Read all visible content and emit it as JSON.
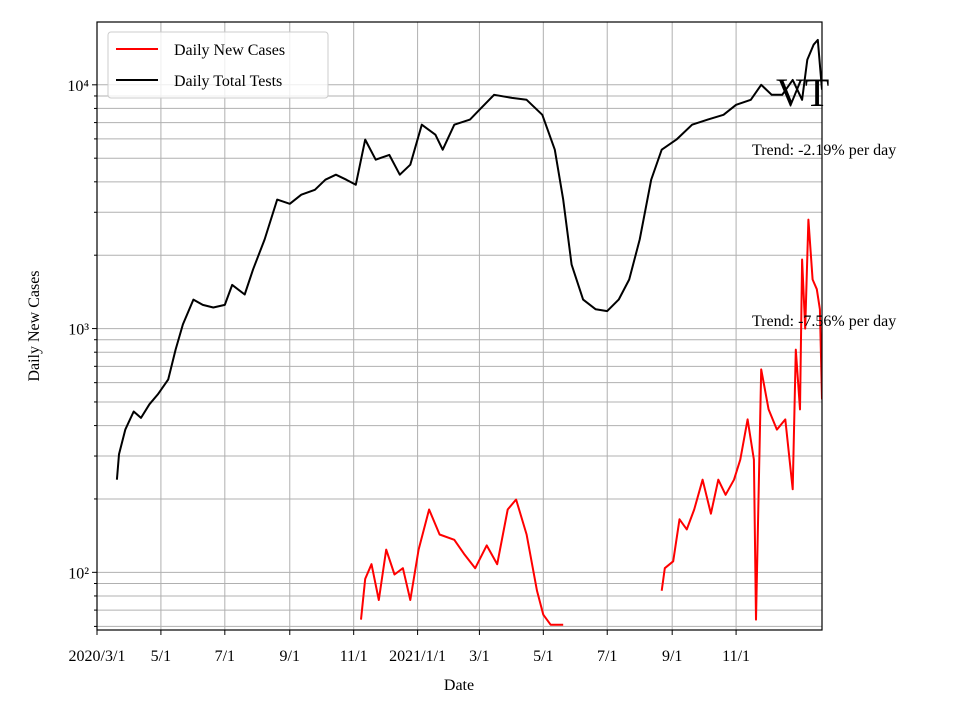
{
  "chart_data": {
    "type": "line",
    "x_label": "Date",
    "y_label": "Daily New Cases",
    "log_y": true,
    "grid": true,
    "legend": "upper left",
    "xlim": [
      "2020-03-01",
      "2022-01-22"
    ],
    "xticks": [
      {
        "value": "2020-03-01",
        "label": "2020/3/1"
      },
      {
        "value": "2020-05-01",
        "label": "5/1"
      },
      {
        "value": "2020-07-01",
        "label": "7/1"
      },
      {
        "value": "2020-09-01",
        "label": "9/1"
      },
      {
        "value": "2020-11-01",
        "label": "11/1"
      },
      {
        "value": "2021-01-01",
        "label": "2021/1/1"
      },
      {
        "value": "2021-03-01",
        "label": "3/1"
      },
      {
        "value": "2021-05-01",
        "label": "5/1"
      },
      {
        "value": "2021-07-01",
        "label": "7/1"
      },
      {
        "value": "2021-09-01",
        "label": "9/1"
      },
      {
        "value": "2021-11-01",
        "label": "11/1"
      }
    ],
    "ylim": [
      58,
      18100
    ],
    "yticks": [
      {
        "value": 100,
        "label": "10²"
      },
      {
        "value": 1000,
        "label": "10³"
      },
      {
        "value": 10000,
        "label": "10⁴"
      }
    ],
    "yminorticks": [
      60,
      70,
      80,
      90,
      200,
      300,
      400,
      500,
      600,
      700,
      800,
      900,
      2000,
      3000,
      4000,
      5000,
      6000,
      7000,
      8000,
      9000
    ],
    "annotations": [
      {
        "text": "VT"
      },
      {
        "text": "Trend: -2.19% per day"
      },
      {
        "text": "Trend: -7.56% per day"
      }
    ],
    "series": [
      {
        "name": "Daily New Cases",
        "color": "#ff0000",
        "x": [
          "2020-11-08",
          "2020-11-12",
          "2020-11-18",
          "2020-11-25",
          "2020-12-02",
          "2020-12-10",
          "2020-12-18",
          "2020-12-25",
          "2021-01-02",
          "2021-01-12",
          "2021-01-22",
          "2021-02-05",
          "2021-02-15",
          "2021-02-25",
          "2021-03-08",
          "2021-03-18",
          "2021-03-28",
          "2021-04-05",
          "2021-04-15",
          "2021-04-25",
          "2021-05-01",
          "2021-05-08",
          "2021-05-20",
          "2021-07-01",
          "2021-08-22",
          "2021-08-25",
          "2021-09-02",
          "2021-09-08",
          "2021-09-15",
          "2021-09-22",
          "2021-09-30",
          "2021-10-08",
          "2021-10-15",
          "2021-10-22",
          "2021-10-30",
          "2021-11-05",
          "2021-11-12",
          "2021-11-18",
          "2021-11-20",
          "2021-11-25",
          "2021-12-02",
          "2021-12-10",
          "2021-12-18",
          "2021-12-25",
          "2021-12-28",
          "2022-01-01",
          "2022-01-03",
          "2022-01-06",
          "2022-01-09",
          "2022-01-13",
          "2022-01-17",
          "2022-01-20",
          "2022-01-22"
        ],
        "values": [
          64,
          94,
          108,
          77,
          124,
          98,
          104,
          77,
          124,
          181,
          143,
          136,
          118,
          104,
          129,
          108,
          181,
          199,
          143,
          84,
          67,
          61,
          61,
          null,
          84,
          104,
          111,
          165,
          150,
          181,
          240,
          174,
          240,
          208,
          240,
          290,
          424,
          290,
          64,
          680,
          466,
          385,
          424,
          219,
          820,
          466,
          1920,
          1000,
          2800,
          1590,
          1450,
          1200,
          512
        ]
      },
      {
        "name": "Daily Total Tests",
        "color": "#000000",
        "x": [
          "2020-03-20",
          "2020-03-22",
          "2020-03-28",
          "2020-04-05",
          "2020-04-12",
          "2020-04-20",
          "2020-04-28",
          "2020-05-08",
          "2020-05-15",
          "2020-05-22",
          "2020-06-01",
          "2020-06-10",
          "2020-06-20",
          "2020-07-01",
          "2020-07-08",
          "2020-07-20",
          "2020-07-28",
          "2020-08-08",
          "2020-08-20",
          "2020-09-01",
          "2020-09-12",
          "2020-09-25",
          "2020-10-05",
          "2020-10-15",
          "2020-10-25",
          "2020-11-03",
          "2020-11-12",
          "2020-11-22",
          "2020-12-05",
          "2020-12-15",
          "2020-12-25",
          "2021-01-05",
          "2021-01-18",
          "2021-01-25",
          "2021-02-05",
          "2021-02-20",
          "2021-03-01",
          "2021-03-15",
          "2021-04-01",
          "2021-04-15",
          "2021-04-30",
          "2021-05-12",
          "2021-05-20",
          "2021-05-28",
          "2021-06-08",
          "2021-06-20",
          "2021-07-01",
          "2021-07-12",
          "2021-07-22",
          "2021-08-01",
          "2021-08-12",
          "2021-08-22",
          "2021-09-05",
          "2021-09-20",
          "2021-10-05",
          "2021-10-20",
          "2021-11-01",
          "2021-11-15",
          "2021-11-25",
          "2021-12-05",
          "2021-12-15",
          "2021-12-25",
          "2022-01-03",
          "2022-01-08",
          "2022-01-14",
          "2022-01-18",
          "2022-01-20",
          "2022-01-22"
        ],
        "values": [
          240,
          305,
          385,
          457,
          430,
          489,
          537,
          618,
          820,
          1040,
          1315,
          1250,
          1220,
          1250,
          1510,
          1380,
          1750,
          2320,
          3380,
          3250,
          3540,
          3710,
          4080,
          4280,
          4080,
          3890,
          5960,
          4930,
          5160,
          4280,
          4700,
          6860,
          6240,
          5420,
          6860,
          7200,
          7900,
          9100,
          8840,
          8680,
          7530,
          5420,
          3380,
          1830,
          1315,
          1200,
          1180,
          1315,
          1590,
          2320,
          4080,
          5420,
          5960,
          6860,
          7200,
          7530,
          8280,
          8680,
          10000,
          9100,
          9100,
          10470,
          8680,
          12660,
          14600,
          15280,
          12070,
          9550
        ]
      }
    ]
  }
}
